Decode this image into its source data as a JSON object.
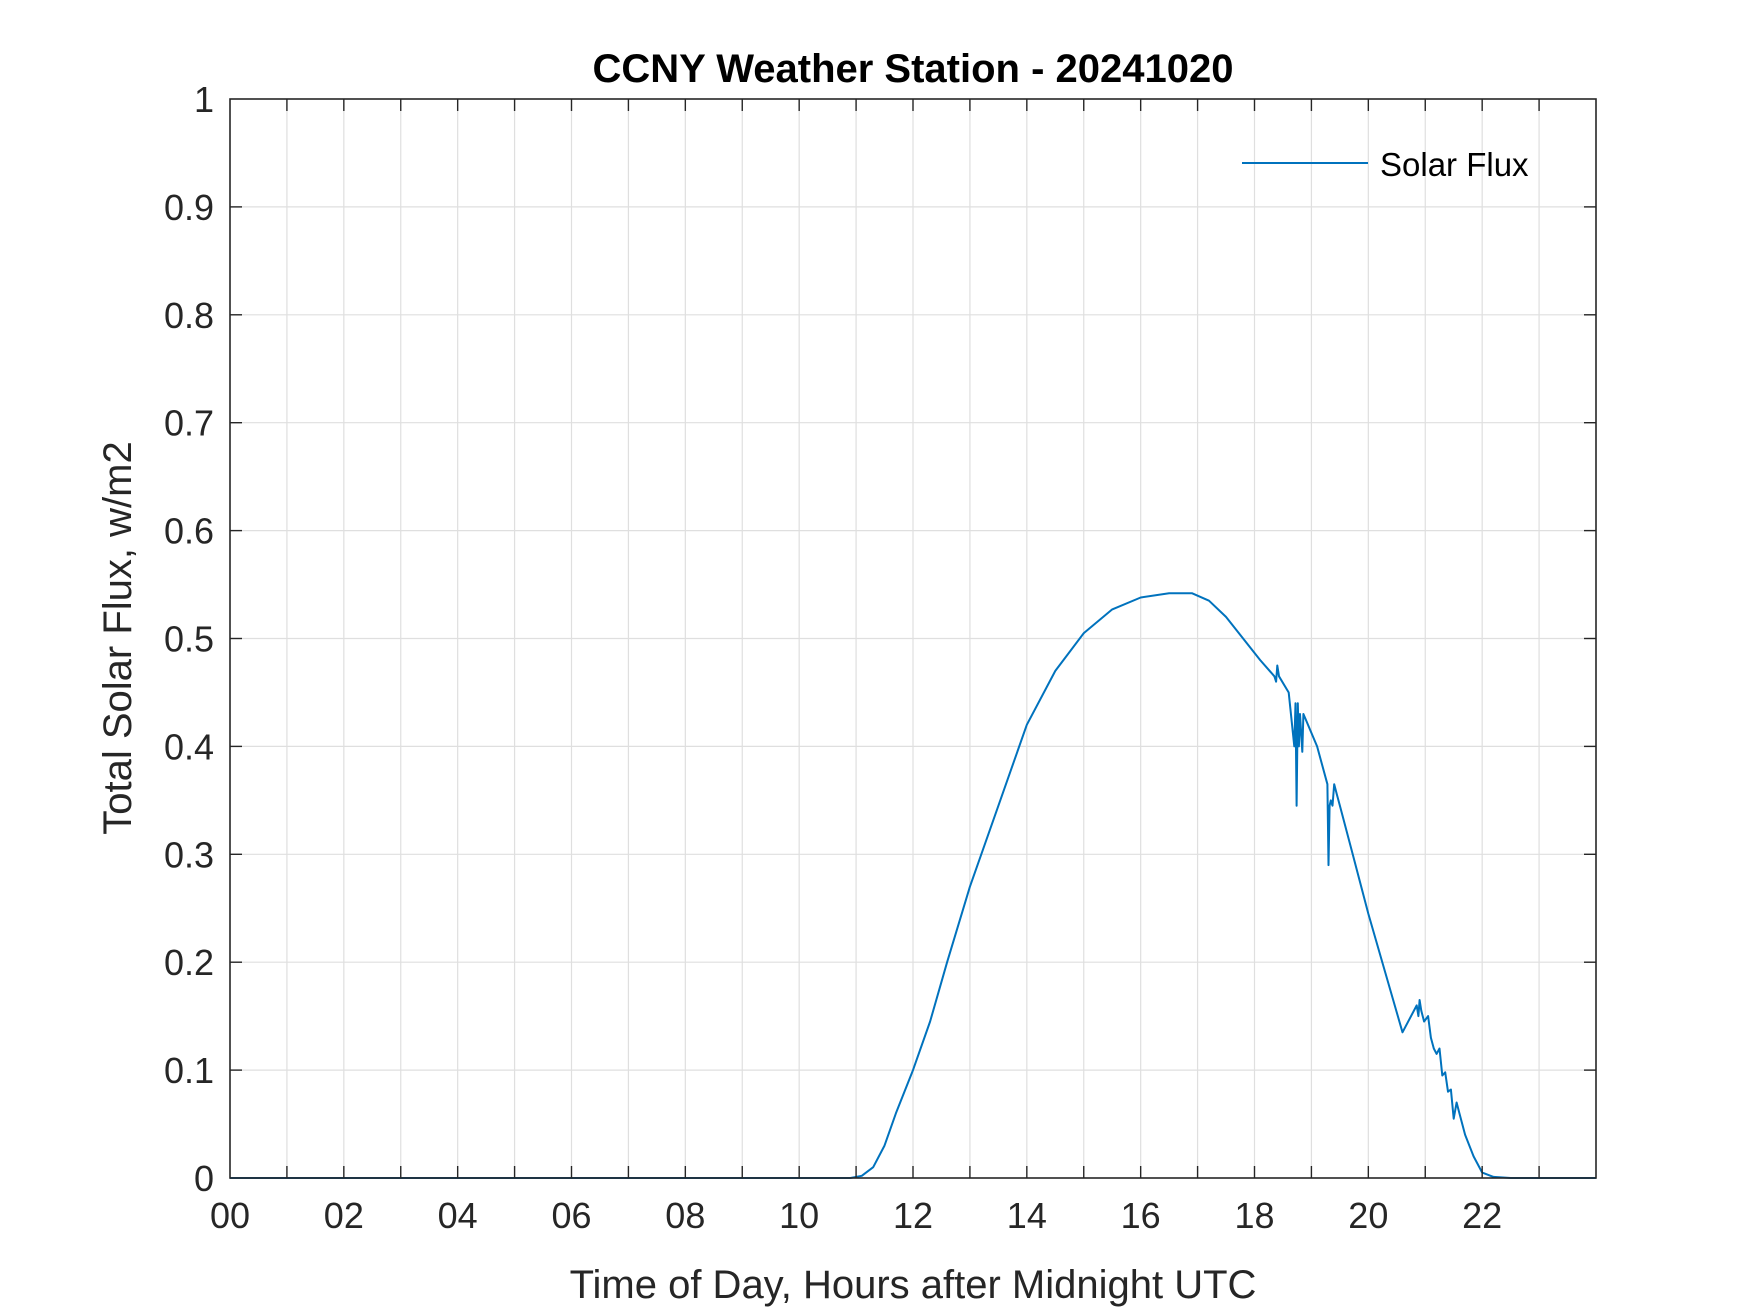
{
  "chart_data": {
    "type": "line",
    "title": "CCNY Weather Station - 20241020",
    "xlabel": "Time of Day, Hours after Midnight UTC",
    "ylabel": "Total Solar Flux, w/m2",
    "xlim": [
      0,
      24
    ],
    "ylim": [
      0,
      1
    ],
    "grid": true,
    "legend_position": "top-right",
    "xticks": [
      0,
      2,
      4,
      6,
      8,
      10,
      12,
      14,
      16,
      18,
      20,
      22
    ],
    "xtick_labels": [
      "00",
      "02",
      "04",
      "06",
      "08",
      "10",
      "12",
      "14",
      "16",
      "18",
      "20",
      "22"
    ],
    "yticks": [
      0,
      0.1,
      0.2,
      0.3,
      0.4,
      0.5,
      0.6,
      0.7,
      0.8,
      0.9,
      1
    ],
    "ytick_labels": [
      "0",
      "0.1",
      "0.2",
      "0.3",
      "0.4",
      "0.5",
      "0.6",
      "0.7",
      "0.8",
      "0.9",
      "1"
    ],
    "colors": {
      "series": "#0072BD",
      "axis": "#262626",
      "grid": "#dfdfdf"
    },
    "series": [
      {
        "name": "Solar Flux",
        "x": [
          0,
          10.9,
          11.1,
          11.3,
          11.5,
          11.7,
          12.0,
          12.3,
          12.6,
          13.0,
          13.5,
          14.0,
          14.5,
          15.0,
          15.5,
          16.0,
          16.5,
          16.9,
          17.2,
          17.5,
          17.8,
          18.1,
          18.35,
          18.38,
          18.4,
          18.43,
          18.6,
          18.7,
          18.72,
          18.74,
          18.76,
          18.78,
          18.8,
          18.84,
          18.86,
          18.9,
          19.1,
          19.28,
          19.3,
          19.32,
          19.34,
          19.37,
          19.4,
          19.45,
          19.5,
          19.7,
          20.0,
          20.3,
          20.6,
          20.85,
          20.88,
          20.9,
          20.93,
          20.98,
          21.05,
          21.1,
          21.15,
          21.2,
          21.25,
          21.3,
          21.35,
          21.4,
          21.45,
          21.5,
          21.55,
          21.6,
          21.7,
          21.85,
          22.0,
          22.2,
          22.5,
          23.0,
          23.999
        ],
        "y": [
          0,
          0,
          0.002,
          0.01,
          0.03,
          0.06,
          0.1,
          0.145,
          0.2,
          0.27,
          0.345,
          0.42,
          0.47,
          0.505,
          0.527,
          0.538,
          0.542,
          0.542,
          0.535,
          0.52,
          0.5,
          0.48,
          0.465,
          0.46,
          0.475,
          0.465,
          0.45,
          0.4,
          0.44,
          0.345,
          0.44,
          0.4,
          0.43,
          0.395,
          0.43,
          0.425,
          0.4,
          0.365,
          0.29,
          0.345,
          0.35,
          0.345,
          0.365,
          0.355,
          0.345,
          0.305,
          0.245,
          0.19,
          0.135,
          0.16,
          0.15,
          0.165,
          0.155,
          0.145,
          0.15,
          0.13,
          0.12,
          0.115,
          0.12,
          0.095,
          0.098,
          0.08,
          0.082,
          0.055,
          0.07,
          0.06,
          0.04,
          0.02,
          0.005,
          0.001,
          0,
          0,
          0
        ]
      }
    ]
  }
}
